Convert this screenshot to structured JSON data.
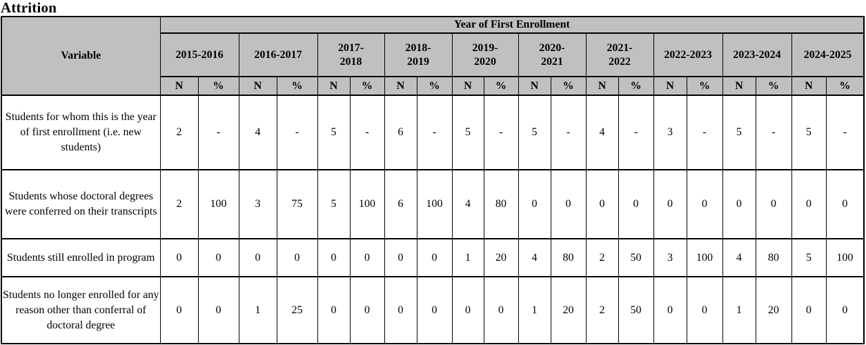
{
  "title": "Attrition",
  "table": {
    "span_header": "Year of First Enrollment",
    "variable_header": "Variable",
    "sub_headers": {
      "n": "N",
      "pct": "%"
    },
    "years": [
      "2015-2016",
      "2016-2017",
      "2017-\n2018",
      "2018-\n2019",
      "2019-\n2020",
      "2020-\n2021",
      "2021-\n2022",
      "2022-2023",
      "2023-2024",
      "2024-2025"
    ],
    "rows": [
      {
        "label": "Students for whom this is the year of first enrollment (i.e. new students)",
        "values": [
          "2",
          "-",
          "4",
          "-",
          "5",
          "-",
          "6",
          "-",
          "5",
          "-",
          "5",
          "-",
          "4",
          "-",
          "3",
          "-",
          "5",
          "-",
          "5",
          "-"
        ]
      },
      {
        "label": "Students whose doctoral degrees were conferred on their transcripts",
        "values": [
          "2",
          "100",
          "3",
          "75",
          "5",
          "100",
          "6",
          "100",
          "4",
          "80",
          "0",
          "0",
          "0",
          "0",
          "0",
          "0",
          "0",
          "0",
          "0",
          "0"
        ]
      },
      {
        "label": "Students still enrolled in program",
        "values": [
          "0",
          "0",
          "0",
          "0",
          "0",
          "0",
          "0",
          "0",
          "1",
          "20",
          "4",
          "80",
          "2",
          "50",
          "3",
          "100",
          "4",
          "80",
          "5",
          "100"
        ]
      },
      {
        "label": "Students no longer enrolled for any reason other than conferral of doctoral degree",
        "values": [
          "0",
          "0",
          "1",
          "25",
          "0",
          "0",
          "0",
          "0",
          "0",
          "0",
          "1",
          "20",
          "2",
          "50",
          "0",
          "0",
          "1",
          "20",
          "0",
          "0"
        ]
      }
    ]
  },
  "colors": {
    "header_background": "#c0c0c0",
    "border": "#000000",
    "text": "#000000",
    "page_background": "#ffffff"
  }
}
